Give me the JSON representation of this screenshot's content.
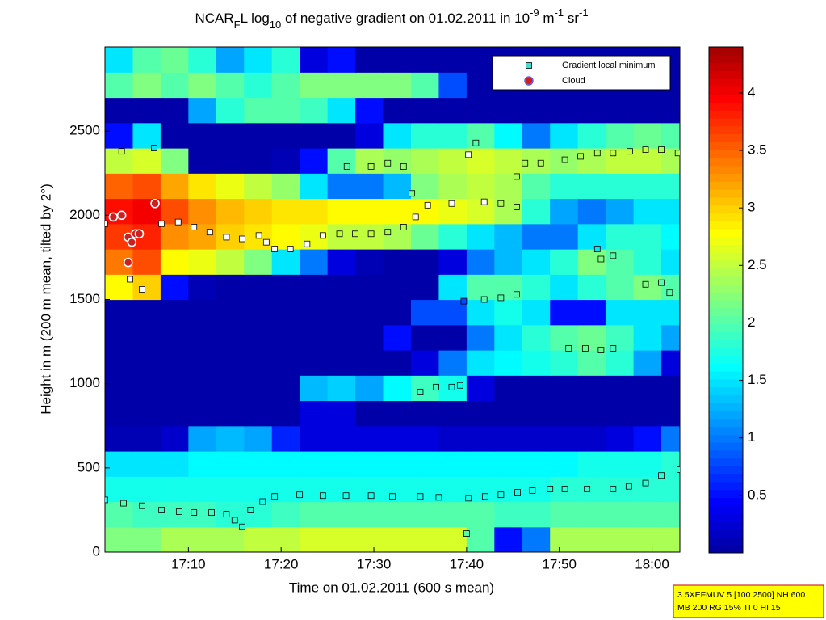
{
  "chart_data": {
    "type": "heatmap",
    "title": [
      {
        "text": "NCAR"
      },
      {
        "text": "F",
        "script": "sub"
      },
      {
        "text": "L log"
      },
      {
        "text": "10",
        "script": "sub"
      },
      {
        "text": " of negative gradient on 01.02.2011 in 10"
      },
      {
        "text": "-9",
        "script": "sup"
      },
      {
        "text": " m"
      },
      {
        "text": "-1",
        "script": "sup"
      },
      {
        "text": " sr"
      },
      {
        "text": "-1",
        "script": "sup"
      }
    ],
    "x_label": "Time on 01.02.2011 (600 s mean)",
    "y_label": "Height in m (200 m mean, tilted by 2°)",
    "xlim": [
      1021,
      1083
    ],
    "ylim": [
      0,
      3000
    ],
    "xticks": [
      {
        "value": 1030,
        "label": "17:10"
      },
      {
        "value": 1040,
        "label": "17:20"
      },
      {
        "value": 1050,
        "label": "17:30"
      },
      {
        "value": 1060,
        "label": "17:40"
      },
      {
        "value": 1070,
        "label": "17:50"
      },
      {
        "value": 1080,
        "label": "18:00"
      }
    ],
    "yticks": [
      0,
      500,
      1000,
      1500,
      2000,
      2500
    ],
    "clim": [
      0,
      4.4
    ],
    "cticks": [
      0.5,
      1,
      1.5,
      2,
      2.5,
      3,
      3.5,
      4
    ],
    "colormap": "jet",
    "x": [
      1022.5,
      1025.5,
      1028.5,
      1031.5,
      1034.5,
      1037.5,
      1040.5,
      1043.5,
      1046.5,
      1049.5,
      1052.5,
      1055.5,
      1058.5,
      1061.5,
      1064.5,
      1067.5,
      1070.5,
      1073.5,
      1076.5,
      1079.5,
      1082.5
    ],
    "y": [
      75,
      225,
      375,
      525,
      675,
      825,
      975,
      1125,
      1275,
      1425,
      1575,
      1725,
      1875,
      2025,
      2175,
      2325,
      2475,
      2625,
      2775,
      2925
    ],
    "z": [
      [
        2.2,
        2.2,
        2.4,
        2.4,
        2.4,
        2.5,
        2.5,
        2.6,
        2.6,
        2.6,
        2.6,
        2.6,
        2.6,
        2.0,
        0.5,
        1.0,
        2.4,
        2.4,
        2.4,
        2.4,
        2.4
      ],
      [
        2.0,
        1.9,
        1.9,
        1.9,
        1.8,
        1.8,
        1.9,
        2.0,
        2.0,
        2.0,
        2.0,
        2.0,
        2.0,
        2.0,
        1.9,
        1.9,
        2.0,
        2.0,
        2.0,
        2.0,
        2.0
      ],
      [
        1.7,
        1.7,
        1.7,
        1.7,
        1.7,
        1.7,
        1.7,
        1.7,
        1.7,
        1.7,
        1.7,
        1.7,
        1.7,
        1.7,
        1.7,
        1.7,
        1.8,
        1.8,
        1.8,
        1.8,
        1.8
      ],
      [
        1.5,
        1.5,
        1.5,
        1.6,
        1.6,
        1.6,
        1.6,
        1.6,
        1.6,
        1.6,
        1.6,
        1.6,
        1.6,
        1.6,
        1.6,
        1.6,
        1.6,
        1.7,
        1.7,
        1.7,
        1.8
      ],
      [
        0.1,
        0.1,
        0.2,
        1.2,
        1.3,
        1.2,
        0.6,
        0.3,
        0.3,
        0.3,
        0.3,
        0.3,
        0.2,
        0.2,
        0.2,
        0.2,
        0.2,
        0.2,
        0.3,
        0.5,
        1.0
      ],
      [
        0.05,
        0.05,
        0.05,
        0.05,
        0.05,
        0.05,
        0.05,
        0.3,
        0.3,
        0.05,
        0.05,
        0.05,
        0.05,
        0.05,
        0.05,
        0.05,
        0.05,
        0.05,
        0.05,
        0.05,
        0.05
      ],
      [
        0.05,
        0.05,
        0.05,
        0.05,
        0.05,
        0.05,
        0.05,
        1.3,
        1.4,
        1.2,
        1.6,
        1.9,
        1.7,
        0.3,
        0.05,
        0.05,
        0.05,
        0.05,
        0.05,
        0.05,
        0.05
      ],
      [
        0.05,
        0.05,
        0.05,
        0.05,
        0.05,
        0.05,
        0.05,
        0.05,
        0.05,
        0.05,
        0.05,
        0.3,
        1.0,
        1.5,
        1.6,
        1.7,
        1.8,
        2.0,
        1.8,
        1.2,
        0.3
      ],
      [
        0.05,
        0.05,
        0.05,
        0.05,
        0.05,
        0.05,
        0.05,
        0.05,
        0.05,
        0.05,
        0.5,
        0.05,
        0.05,
        1.0,
        1.5,
        1.8,
        2.0,
        2.1,
        1.9,
        1.5,
        1.2
      ],
      [
        0.05,
        0.05,
        0.05,
        0.05,
        0.05,
        0.05,
        0.05,
        0.05,
        0.05,
        0.05,
        0.05,
        0.8,
        0.8,
        1.5,
        1.7,
        1.5,
        0.5,
        0.5,
        1.5,
        1.5,
        1.5
      ],
      [
        2.8,
        3.0,
        0.5,
        0.1,
        0.05,
        0.05,
        0.05,
        0.05,
        0.05,
        0.05,
        0.05,
        0.05,
        1.5,
        2.0,
        2.0,
        1.8,
        1.5,
        1.8,
        2.0,
        2.2,
        2.0
      ],
      [
        3.4,
        3.6,
        2.8,
        2.7,
        2.5,
        2.2,
        1.5,
        1.0,
        0.3,
        0.1,
        0.05,
        0.05,
        0.3,
        1.0,
        1.3,
        1.5,
        1.8,
        2.2,
        2.0,
        1.8,
        1.5
      ],
      [
        3.7,
        3.8,
        3.3,
        3.2,
        3.0,
        2.9,
        2.8,
        2.7,
        2.5,
        2.5,
        2.4,
        2.1,
        1.8,
        1.5,
        1.3,
        1.0,
        1.0,
        1.5,
        1.8,
        1.8,
        1.6
      ],
      [
        3.9,
        4.0,
        3.6,
        3.3,
        3.1,
        3.0,
        2.9,
        2.9,
        2.8,
        2.8,
        2.8,
        2.8,
        2.7,
        2.6,
        2.4,
        1.8,
        1.2,
        1.0,
        1.2,
        1.5,
        1.5
      ],
      [
        3.5,
        3.6,
        3.2,
        2.9,
        2.7,
        2.5,
        2.3,
        1.5,
        1.0,
        1.0,
        1.3,
        2.2,
        2.4,
        2.5,
        2.4,
        2.0,
        1.8,
        1.8,
        1.8,
        1.8,
        1.8
      ],
      [
        2.5,
        2.6,
        2.2,
        0.05,
        0.05,
        0.05,
        0.1,
        0.5,
        2.0,
        2.4,
        2.3,
        2.4,
        2.5,
        2.6,
        2.5,
        2.4,
        2.3,
        2.4,
        2.5,
        2.5,
        2.4
      ],
      [
        0.5,
        1.5,
        0.05,
        0.05,
        0.05,
        0.05,
        0.05,
        0.05,
        0.05,
        0.3,
        1.5,
        1.8,
        1.8,
        2.0,
        1.6,
        1.0,
        1.5,
        1.8,
        2.0,
        2.1,
        2.0
      ],
      [
        0.05,
        0.05,
        0.05,
        1.2,
        1.8,
        2.0,
        2.0,
        1.9,
        1.5,
        0.5,
        0.05,
        0.05,
        0.05,
        0.05,
        0.05,
        0.05,
        0.05,
        0.05,
        0.05,
        0.05,
        0.05
      ],
      [
        2.0,
        2.2,
        2.0,
        2.2,
        2.0,
        1.8,
        2.0,
        2.2,
        2.2,
        2.2,
        2.2,
        2.0,
        0.8,
        0.05,
        0.05,
        0.05,
        0.05,
        0.05,
        0.05,
        0.05,
        0.05
      ],
      [
        1.5,
        2.0,
        2.1,
        1.8,
        1.2,
        1.5,
        1.8,
        0.3,
        0.5,
        0.05,
        0.05,
        0.05,
        0.05,
        0.05,
        0.05,
        0.05,
        0.05,
        0.05,
        0.05,
        0.05,
        0.05
      ]
    ],
    "series": [
      {
        "name": "Gradient local minimum",
        "marker": "square",
        "color": "#40e0d0",
        "x": [
          1021,
          1023,
          1025,
          1027.1,
          1029,
          1030.6,
          1032.5,
          1034.1,
          1035,
          1035.8,
          1036.7,
          1038,
          1039.3,
          1042,
          1044.5,
          1047,
          1049.7,
          1052,
          1055,
          1057,
          1060.2,
          1062,
          1063.7,
          1065.5,
          1067.1,
          1069,
          1070.6,
          1073,
          1075.8,
          1077.5,
          1079.3,
          1081,
          1083,
          1060,
          1021,
          1021.9,
          1027.1,
          1028.9,
          1030.6,
          1032.3,
          1034.1,
          1035.8,
          1037.6,
          1038.4,
          1039.3,
          1041,
          1042.8,
          1044.5,
          1046.3,
          1048,
          1049.7,
          1051.5,
          1053.2,
          1054.5,
          1055.8,
          1058.4,
          1061.9,
          1063.7,
          1065.4,
          1047.1,
          1049.7,
          1051.5,
          1053.2,
          1054.1,
          1060.2,
          1061,
          1066.3,
          1068,
          1070.6,
          1072.3,
          1074.1,
          1075.8,
          1077.6,
          1079.3,
          1081,
          1082.8,
          1059.7,
          1061.9,
          1063.7,
          1065.4,
          1071,
          1072.8,
          1074.5,
          1075.8,
          1055,
          1056.7,
          1058.4,
          1059.3,
          1074.1,
          1074.5,
          1075.8,
          1079.3,
          1081,
          1081.9,
          1023.7,
          1025,
          1022.8,
          1026.3,
          1065.4
        ],
        "y": [
          310,
          290,
          275,
          250,
          240,
          235,
          235,
          225,
          190,
          150,
          250,
          300,
          330,
          340,
          335,
          335,
          335,
          330,
          330,
          325,
          320,
          330,
          340,
          355,
          365,
          375,
          375,
          375,
          375,
          390,
          410,
          455,
          490,
          110,
          1950,
          1990,
          1950,
          1960,
          1930,
          1900,
          1870,
          1860,
          1880,
          1840,
          1800,
          1800,
          1830,
          1880,
          1890,
          1890,
          1890,
          1900,
          1930,
          1990,
          2060,
          2070,
          2080,
          2070,
          2050,
          2290,
          2290,
          2310,
          2290,
          2130,
          2360,
          2430,
          2310,
          2310,
          2330,
          2350,
          2370,
          2370,
          2380,
          2390,
          2390,
          2370,
          1490,
          1500,
          1510,
          1530,
          1210,
          1210,
          1200,
          1210,
          950,
          980,
          980,
          990,
          1800,
          1740,
          1760,
          1590,
          1600,
          1540,
          1620,
          1560,
          2380,
          2400,
          2230
        ]
      },
      {
        "name": "Cloud",
        "marker": "circle",
        "color": "#cc2020",
        "x": [
          1021.9,
          1022.8,
          1023.5,
          1023.9,
          1024.3,
          1024.7,
          1023.5,
          1026.4
        ],
        "y": [
          1990,
          2000,
          1870,
          1840,
          1890,
          1890,
          1720,
          2070
        ]
      }
    ],
    "footnote": [
      "3.5XEFMUV 5 [100 2500] NH 600",
      "MB 200 RG 15% TI 0 HI 15"
    ]
  }
}
